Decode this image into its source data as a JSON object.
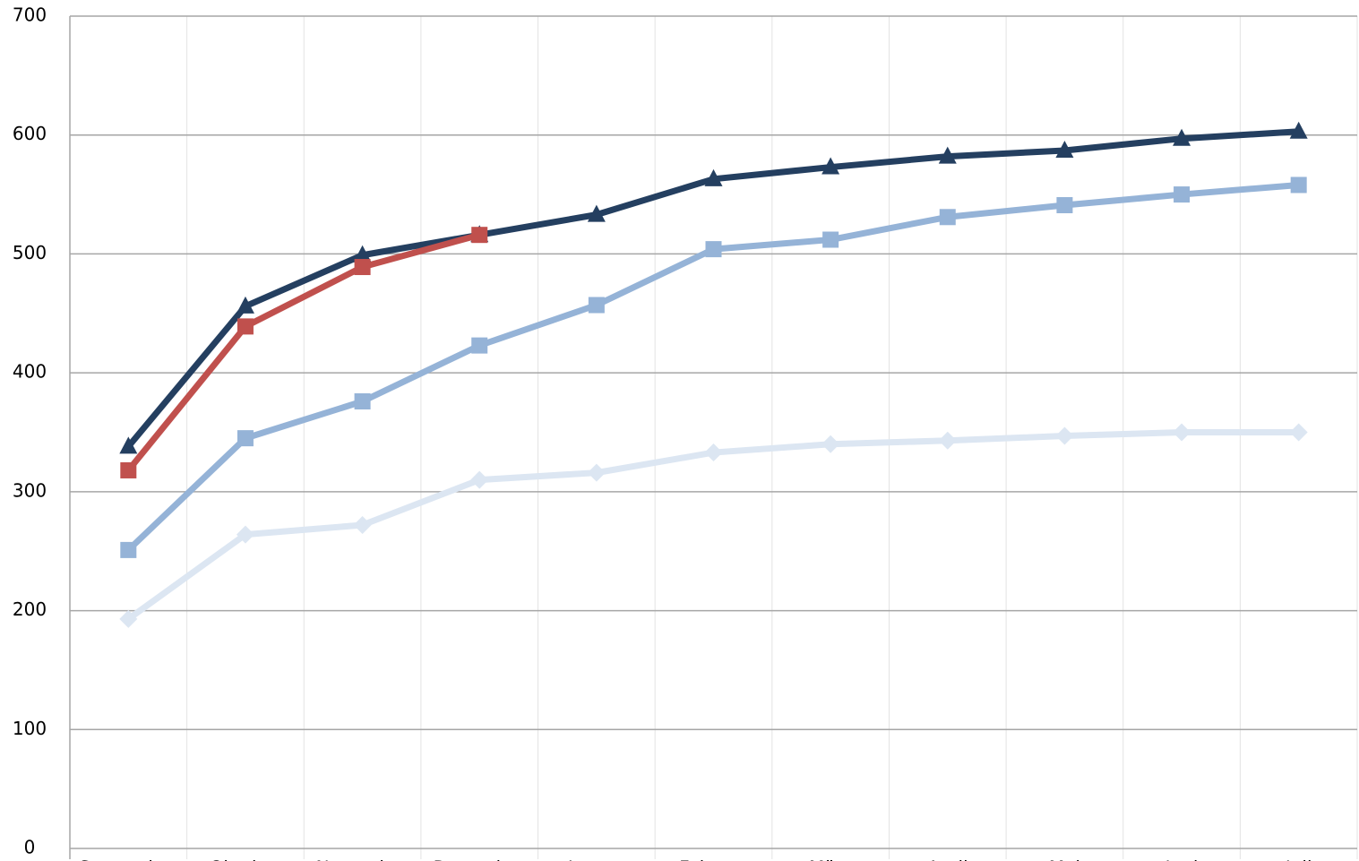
{
  "chart_data": {
    "type": "line",
    "categories": [
      "September",
      "Oktober",
      "November",
      "Dezember",
      "Januar",
      "Februar",
      "März",
      "April",
      "Mai",
      "Juni",
      "Juli"
    ],
    "series": [
      {
        "color": "#dce6f2",
        "marker": "diamond",
        "values": [
          193,
          264,
          272,
          310,
          316,
          333,
          340,
          343,
          347,
          350,
          350
        ]
      },
      {
        "color": "#95b3d7",
        "marker": "square",
        "values": [
          251,
          345,
          376,
          423,
          457,
          504,
          512,
          531,
          541,
          550,
          558
        ]
      },
      {
        "color": "#243f60",
        "marker": "triangle",
        "values": [
          338,
          456,
          499,
          516,
          533,
          563,
          573,
          582,
          587,
          597,
          603
        ]
      },
      {
        "color": "#c0504d",
        "marker": "square",
        "values": [
          318,
          439,
          489,
          516,
          null,
          null,
          null,
          null,
          null,
          null,
          null
        ]
      }
    ],
    "ylim": [
      0,
      700
    ],
    "yticks": [
      0,
      100,
      200,
      300,
      400,
      500,
      600,
      700
    ],
    "grid": true
  }
}
